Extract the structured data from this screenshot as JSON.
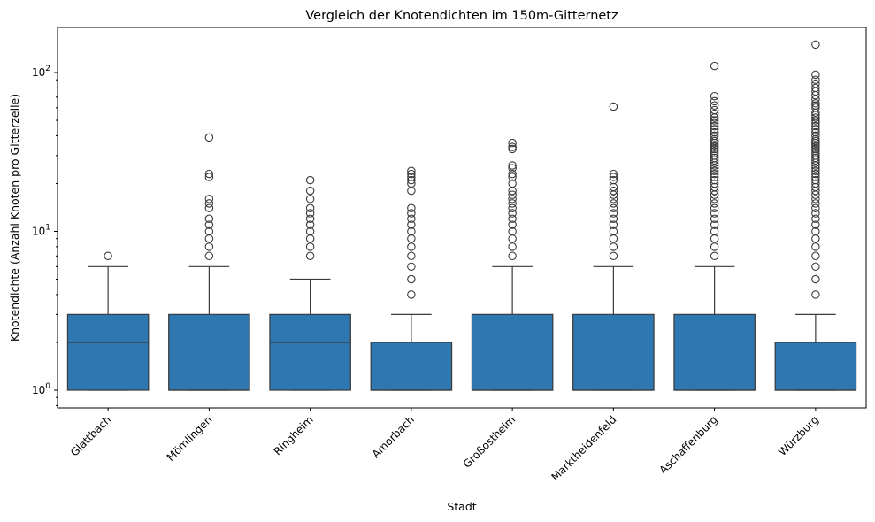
{
  "chart_data": {
    "type": "box",
    "title": "Vergleich der Knotendichten im 150m-Gitternetz",
    "xlabel": "Stadt",
    "ylabel": "Knotendichte (Anzahl Knoten pro Gitterzelle)",
    "yscale": "log",
    "ylim": [
      0.8,
      200
    ],
    "yticks": [
      1,
      10,
      100
    ],
    "ytick_labels": [
      "10",
      "10",
      "10"
    ],
    "ytick_exponents": [
      "0",
      "1",
      "2"
    ],
    "grid": false,
    "colors": {
      "box": "#2f77b0",
      "line": "#3a3a3a"
    },
    "categories": [
      "Glattbach",
      "Mömlingen",
      "Ringheim",
      "Amorbach",
      "Großostheim",
      "Marktheidenfeld",
      "Aschaffenburg",
      "Würzburg"
    ],
    "boxes": [
      {
        "whislo": 1,
        "q1": 1,
        "med": 2,
        "q3": 3,
        "whishi": 6,
        "fliers": [
          7
        ]
      },
      {
        "whislo": 1,
        "q1": 1,
        "med": 1,
        "q3": 3,
        "whishi": 6,
        "fliers": [
          7,
          8,
          9,
          10,
          11,
          12,
          14,
          15,
          16,
          22,
          23,
          39
        ]
      },
      {
        "whislo": 1,
        "q1": 1,
        "med": 2,
        "q3": 3,
        "whishi": 5,
        "fliers": [
          7,
          8,
          9,
          10,
          11,
          12,
          13,
          14,
          16,
          18,
          21
        ]
      },
      {
        "whislo": 1,
        "q1": 1,
        "med": 1,
        "q3": 2,
        "whishi": 3,
        "fliers": [
          4,
          5,
          6,
          7,
          8,
          9,
          10,
          11,
          12,
          13,
          14,
          18,
          20,
          21,
          22,
          23,
          24
        ]
      },
      {
        "whislo": 1,
        "q1": 1,
        "med": 1,
        "q3": 3,
        "whishi": 6,
        "fliers": [
          7,
          8,
          9,
          10,
          11,
          12,
          13,
          14,
          15,
          16,
          17,
          18,
          20,
          22,
          23,
          25,
          26,
          33,
          34,
          36
        ]
      },
      {
        "whislo": 1,
        "q1": 1,
        "med": 1,
        "q3": 3,
        "whishi": 6,
        "fliers": [
          7,
          8,
          9,
          10,
          11,
          12,
          13,
          14,
          15,
          16,
          17,
          18,
          19,
          21,
          22,
          23,
          61
        ]
      },
      {
        "whislo": 1,
        "q1": 1,
        "med": 1,
        "q3": 3,
        "whishi": 6,
        "fliers": [
          7,
          8,
          9,
          10,
          11,
          12,
          13,
          14,
          15,
          16,
          17,
          18,
          19,
          20,
          21,
          22,
          23,
          24,
          25,
          26,
          27,
          28,
          29,
          30,
          31,
          32,
          33,
          34,
          35,
          36,
          37,
          38,
          40,
          42,
          44,
          46,
          48,
          50,
          52,
          55,
          58,
          62,
          66,
          71,
          110
        ]
      },
      {
        "whislo": 1,
        "q1": 1,
        "med": 1,
        "q3": 2,
        "whishi": 3,
        "fliers": [
          4,
          5,
          6,
          7,
          8,
          9,
          10,
          11,
          12,
          13,
          14,
          15,
          16,
          17,
          18,
          19,
          20,
          21,
          22,
          23,
          24,
          25,
          26,
          27,
          28,
          29,
          30,
          31,
          32,
          33,
          34,
          35,
          36,
          37,
          38,
          40,
          42,
          44,
          46,
          48,
          50,
          52,
          54,
          56,
          60,
          62,
          64,
          68,
          72,
          76,
          80,
          85,
          90,
          97,
          150
        ]
      }
    ]
  }
}
